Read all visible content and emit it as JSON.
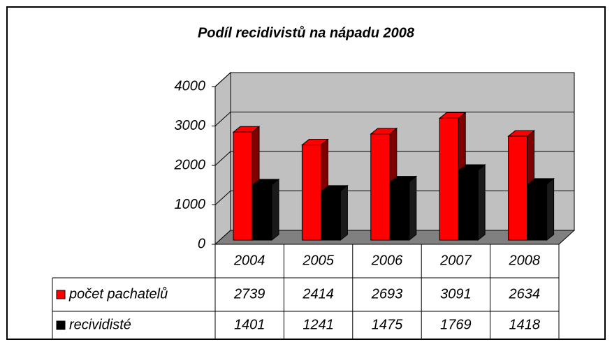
{
  "chart_data": {
    "type": "bar",
    "title": "Podíl recidivistů na nápadu 2008",
    "categories": [
      "2004",
      "2005",
      "2006",
      "2007",
      "2008"
    ],
    "series": [
      {
        "name": "počet pachatelů",
        "color": "#ff0000",
        "values": [
          2739,
          2414,
          2693,
          3091,
          2634
        ]
      },
      {
        "name": "recividisté",
        "color": "#000000",
        "values": [
          1401,
          1241,
          1475,
          1769,
          1418
        ]
      }
    ],
    "ylim": [
      0,
      4000
    ],
    "yticks": [
      0,
      1000,
      2000,
      3000,
      4000
    ],
    "grid": true
  }
}
